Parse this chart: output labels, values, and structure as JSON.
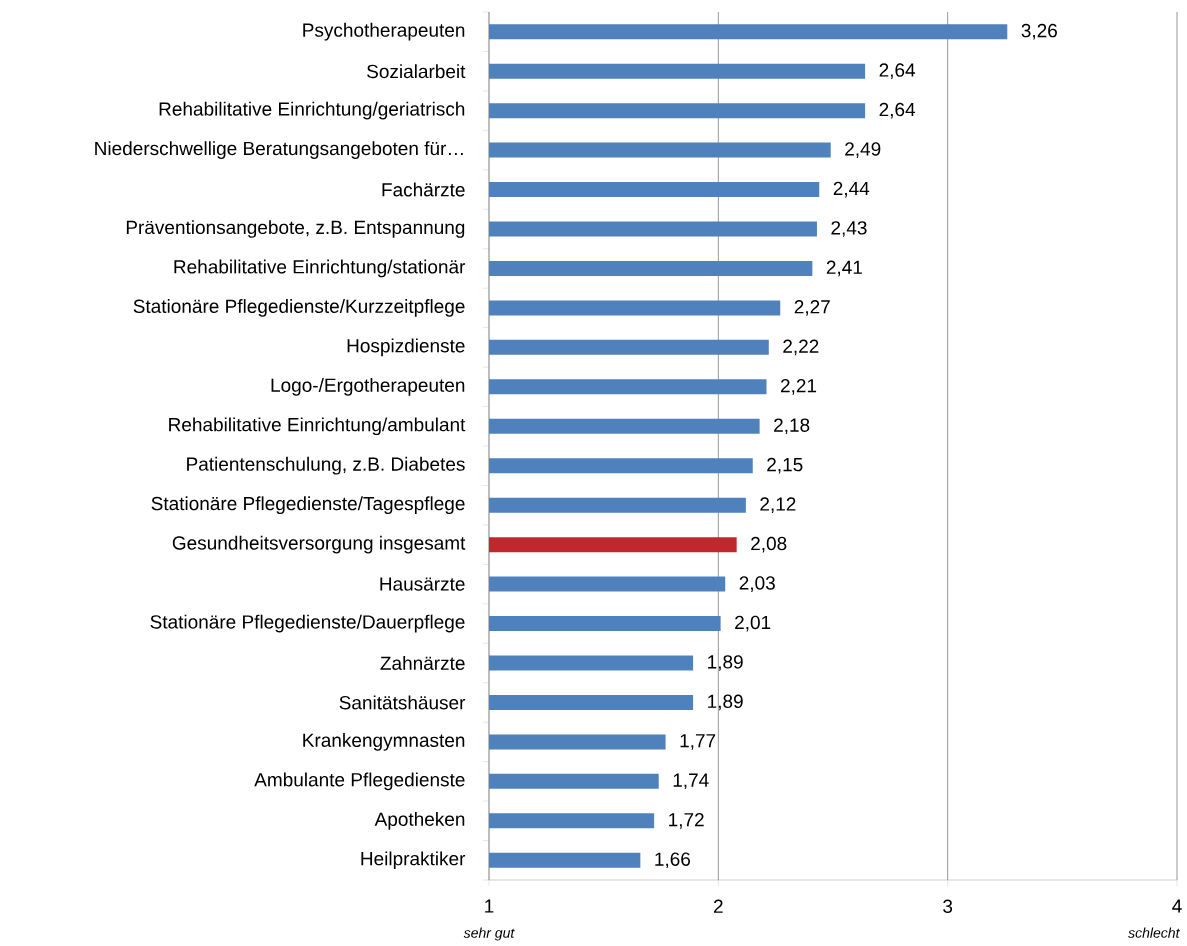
{
  "chart_data": {
    "type": "bar",
    "orientation": "horizontal",
    "categories": [
      "Psychotherapeuten",
      "Sozialarbeit",
      "Rehabilitative Einrichtung/geriatrisch",
      "Niederschwellige Beratungsangeboten für…",
      "Fachärzte",
      "Präventionsangebote, z.B. Entspannung",
      "Rehabilitative Einrichtung/stationär",
      "Stationäre Pflegedienste/Kurzzeitpflege",
      "Hospizdienste",
      "Logo-/Ergotherapeuten",
      "Rehabilitative Einrichtung/ambulant",
      "Patientenschulung, z.B. Diabetes",
      "Stationäre Pflegedienste/Tagespflege",
      "Gesundheitsversorgung insgesamt",
      "Hausärzte",
      "Stationäre Pflegedienste/Dauerpflege",
      "Zahnärzte",
      "Sanitätshäuser",
      "Krankengymnasten",
      "Ambulante Pflegedienste",
      "Apotheken",
      "Heilpraktiker"
    ],
    "values": [
      3.26,
      2.64,
      2.64,
      2.49,
      2.44,
      2.43,
      2.41,
      2.27,
      2.22,
      2.21,
      2.18,
      2.15,
      2.12,
      2.08,
      2.03,
      2.01,
      1.89,
      1.89,
      1.77,
      1.74,
      1.72,
      1.66
    ],
    "value_labels": [
      "3,26",
      "2,64",
      "2,64",
      "2,49",
      "2,44",
      "2,43",
      "2,41",
      "2,27",
      "2,22",
      "2,21",
      "2,18",
      "2,15",
      "2,12",
      "2,08",
      "2,03",
      "2,01",
      "1,89",
      "1,89",
      "1,77",
      "1,74",
      "1,72",
      "1,66"
    ],
    "colors": [
      "#4f81bd",
      "#4f81bd",
      "#4f81bd",
      "#4f81bd",
      "#4f81bd",
      "#4f81bd",
      "#4f81bd",
      "#4f81bd",
      "#4f81bd",
      "#4f81bd",
      "#4f81bd",
      "#4f81bd",
      "#4f81bd",
      "#c0282d",
      "#4f81bd",
      "#4f81bd",
      "#4f81bd",
      "#4f81bd",
      "#4f81bd",
      "#4f81bd",
      "#4f81bd",
      "#4f81bd"
    ],
    "xlim": [
      1,
      4
    ],
    "xticks": [
      1,
      2,
      3,
      4
    ],
    "grid": "x",
    "annotations": [
      "sehr gut",
      "schlecht"
    ]
  }
}
